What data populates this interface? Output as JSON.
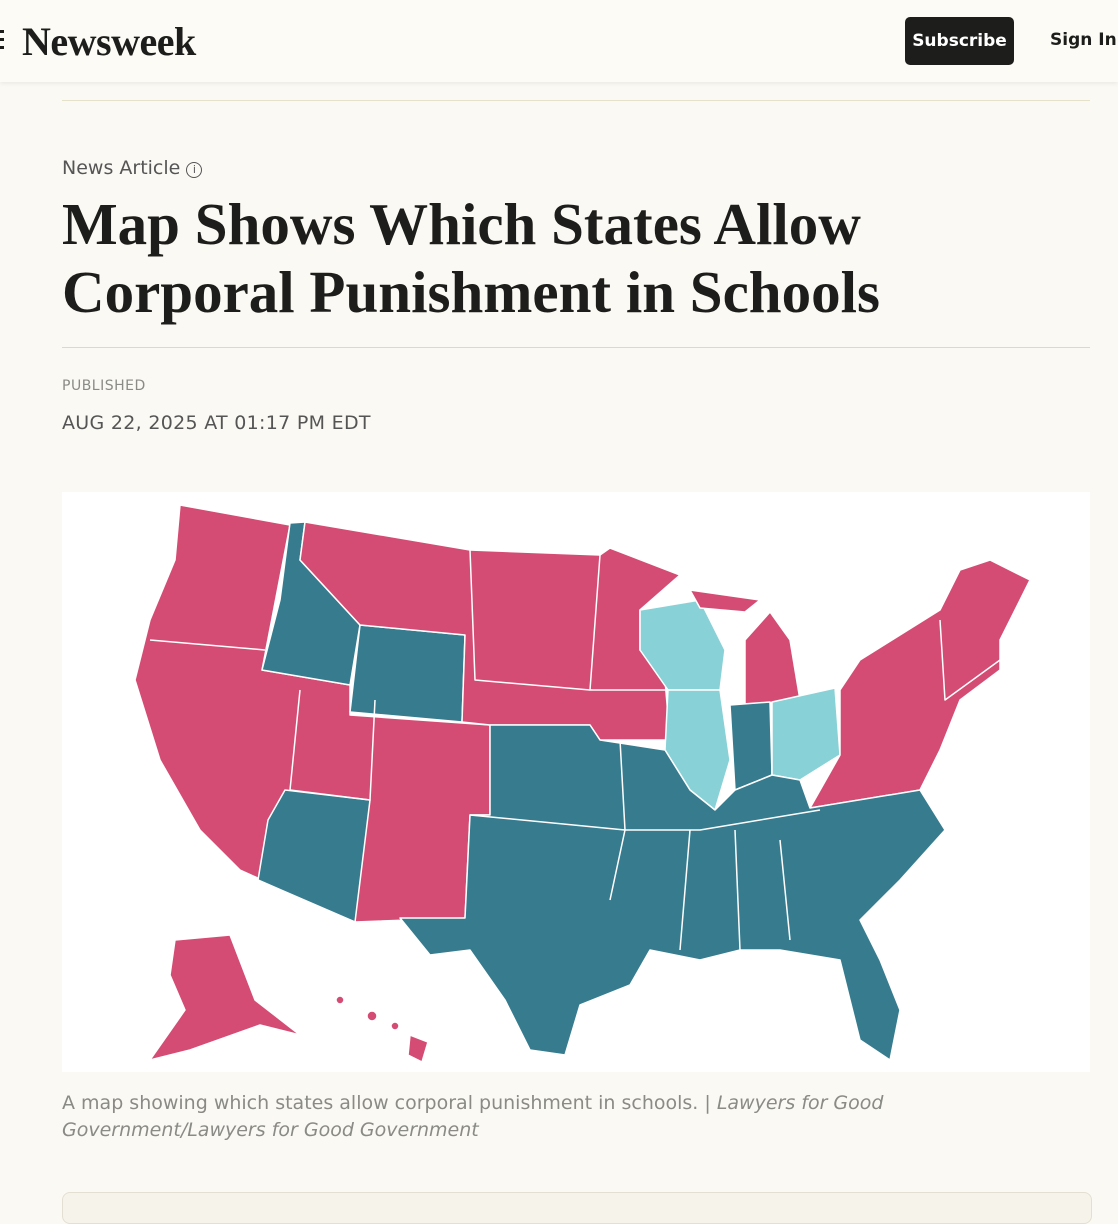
{
  "header": {
    "logo": "Newsweek",
    "subscribe": "Subscribe",
    "sign_in": "Sign In"
  },
  "article": {
    "label": "News Article",
    "title": "Map Shows Which States Allow Corporal Punishment in Schools",
    "published_label": "PUBLISHED",
    "published_date": "AUG 22, 2025 AT 01:17 PM EDT",
    "caption": {
      "text": "A map showing which states allow corporal punishment in schools. |",
      "credit": "Lawyers for Good Government/Lawyers for Good Government"
    }
  }
}
